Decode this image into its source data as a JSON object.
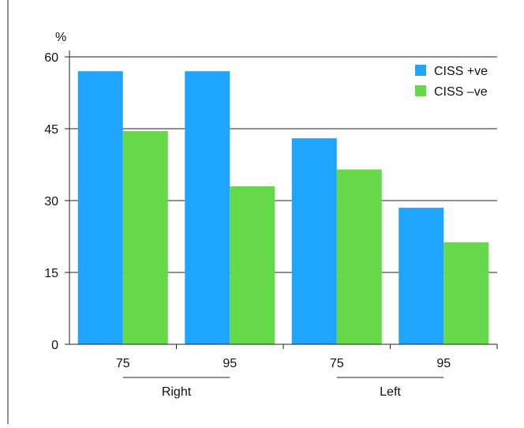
{
  "chart_data": {
    "type": "bar",
    "title": "",
    "ylabel": "%",
    "xlabel": "",
    "ylim": [
      0,
      60
    ],
    "yticks": [
      0,
      15,
      30,
      45,
      60
    ],
    "grid": true,
    "legend_position": "top-right",
    "categories": [
      "75",
      "95",
      "75",
      "95"
    ],
    "groups": [
      {
        "label": "Right",
        "categories": [
          "75",
          "95"
        ]
      },
      {
        "label": "Left",
        "categories": [
          "75",
          "95"
        ]
      }
    ],
    "series": [
      {
        "name": "CISS +ve",
        "color": "#1ea5ff",
        "values": [
          57,
          57,
          43,
          28.5
        ]
      },
      {
        "name": "CISS –ve",
        "color": "#66d94a",
        "values": [
          44.5,
          33,
          36.5,
          21.3
        ]
      }
    ]
  }
}
